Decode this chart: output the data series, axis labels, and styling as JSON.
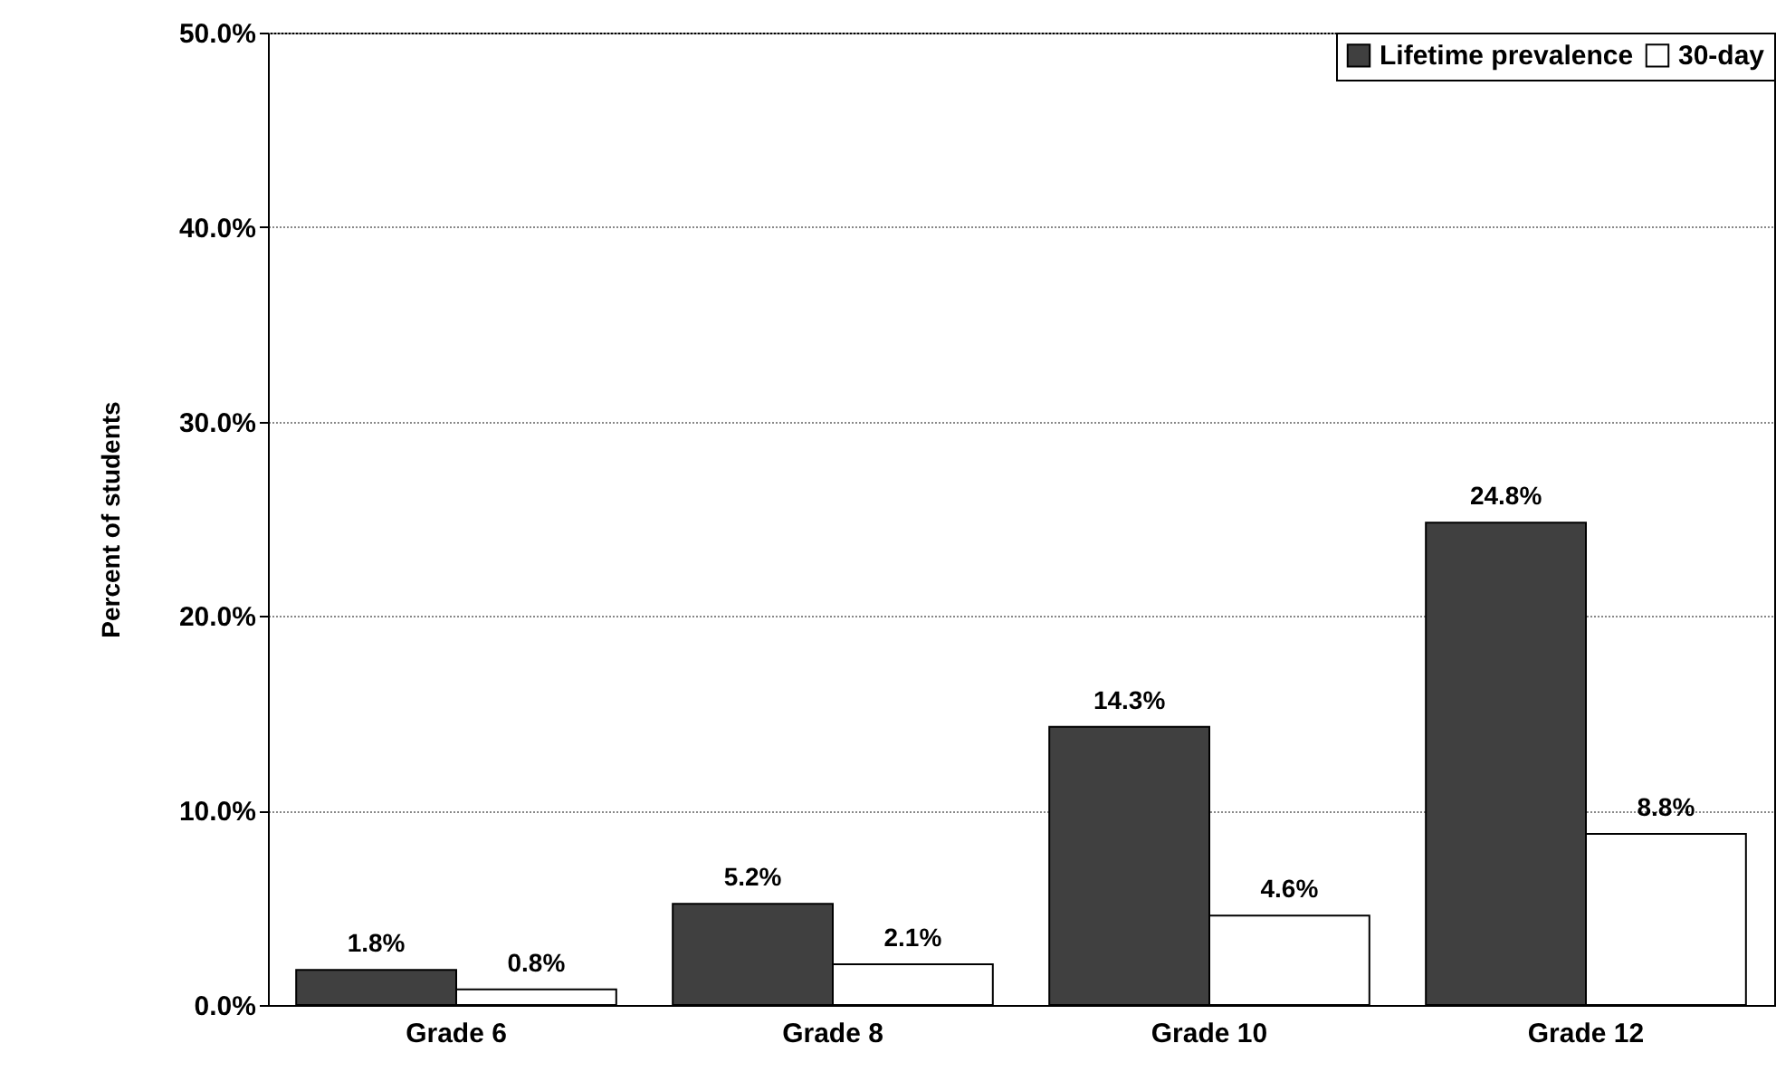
{
  "chart_data": {
    "type": "bar",
    "ylabel": "Percent of students",
    "categories": [
      "Grade 6",
      "Grade 8",
      "Grade 10",
      "Grade 12"
    ],
    "series": [
      {
        "name": "Lifetime prevalence",
        "color": "#404040",
        "values": [
          1.8,
          5.2,
          14.3,
          24.8
        ],
        "value_labels": [
          "1.8%",
          "5.2%",
          "14.3%",
          "24.8%"
        ]
      },
      {
        "name": "30-day",
        "color": "#ffffff",
        "values": [
          0.8,
          2.1,
          4.6,
          8.8
        ],
        "value_labels": [
          "0.8%",
          "2.1%",
          "4.6%",
          "8.8%"
        ]
      }
    ],
    "ylim": [
      0,
      50
    ],
    "yticks": [
      {
        "value": 0,
        "label": "0.0%"
      },
      {
        "value": 10,
        "label": "10.0%"
      },
      {
        "value": 20,
        "label": "20.0%"
      },
      {
        "value": 30,
        "label": "30.0%"
      },
      {
        "value": 40,
        "label": "40.0%"
      },
      {
        "value": 50,
        "label": "50.0%"
      }
    ],
    "grid": "y",
    "legend": "top right"
  }
}
